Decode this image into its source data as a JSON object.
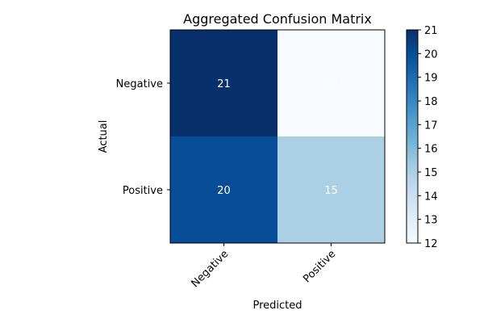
{
  "chart_data": {
    "type": "heatmap",
    "title": "Aggregated Confusion Matrix",
    "xlabel": "Predicted",
    "ylabel": "Actual",
    "x_categories": [
      "Negative",
      "Positive"
    ],
    "y_categories": [
      "Negative",
      "Positive"
    ],
    "values": [
      [
        21,
        12
      ],
      [
        20,
        15
      ]
    ],
    "colorbar": {
      "min": 12,
      "max": 21,
      "ticks": [
        12,
        13,
        14,
        15,
        16,
        17,
        18,
        19,
        20,
        21
      ],
      "colormap": "Blues"
    },
    "grid": false
  }
}
